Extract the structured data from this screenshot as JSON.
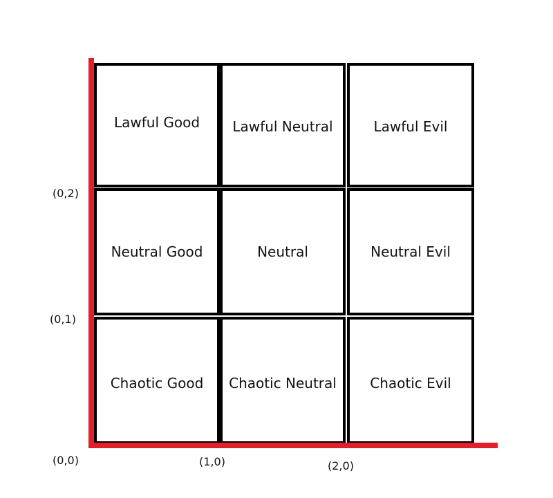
{
  "colors": {
    "axis": "#e0202a",
    "grid": "#000000",
    "text": "#111111"
  },
  "grid": {
    "rows": [
      [
        "Lawful Good",
        "Lawful Neutral",
        "Lawful Evil"
      ],
      [
        "Neutral Good",
        "Neutral",
        "Neutral Evil"
      ],
      [
        "Chaotic Good",
        "Chaotic Neutral",
        "Chaotic Evil"
      ]
    ]
  },
  "coordinates": {
    "origin": "(0,0)",
    "y1": "(0,1)",
    "y2": "(0,2)",
    "x1": "(1,0)",
    "x2": "(2,0)"
  }
}
